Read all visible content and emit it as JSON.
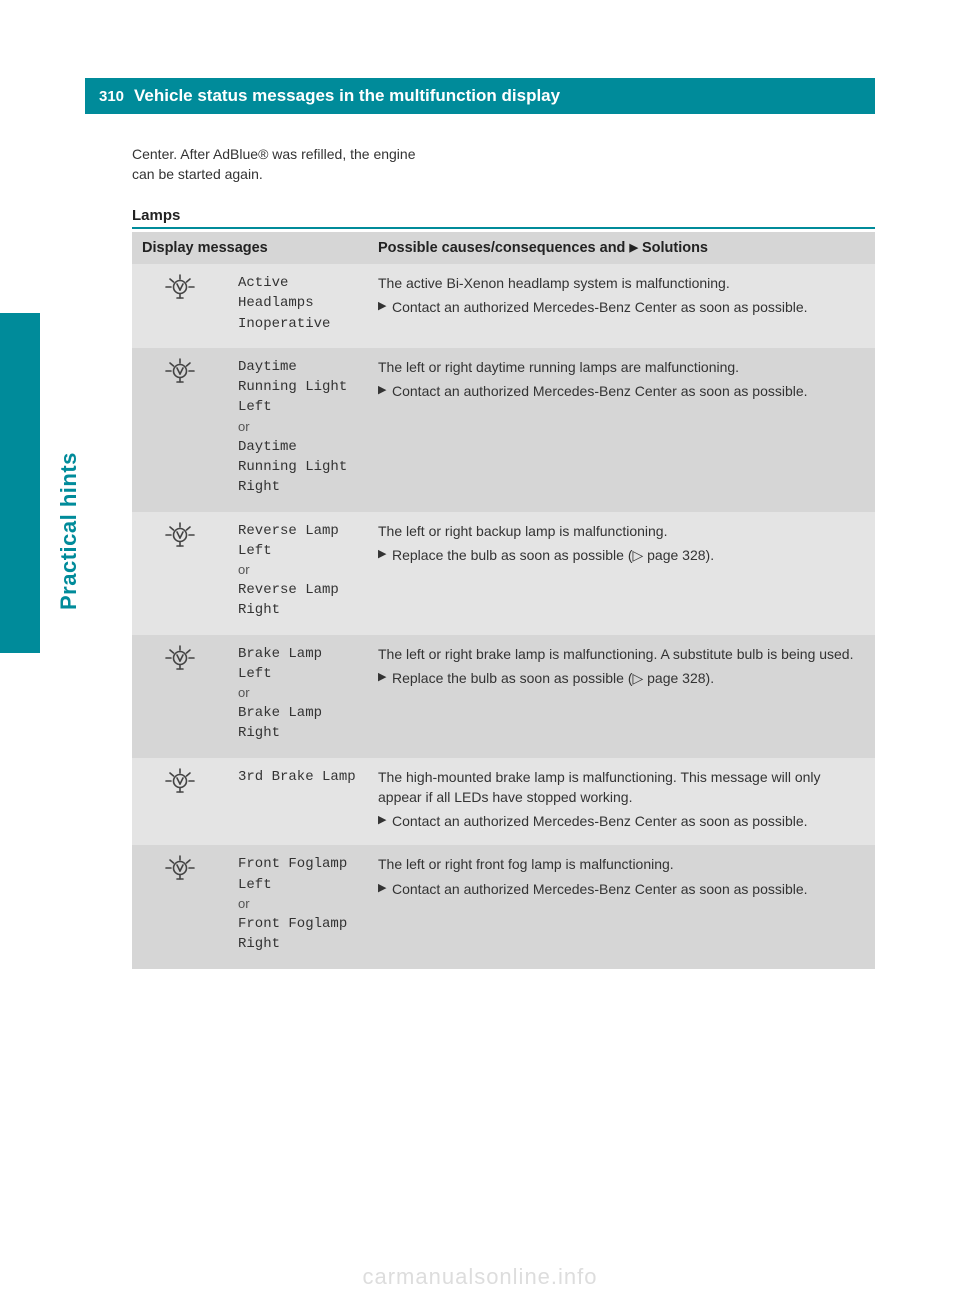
{
  "page_number": "310",
  "header_title": "Vehicle status messages in the multifunction display",
  "sidebar_label": "Practical hints",
  "intro_text": "Center. After AdBlue® was refilled, the engine can be started again.",
  "section_title": "Lamps",
  "th_messages": "Display messages",
  "th_solutions_prefix": "Possible causes/consequences and ",
  "th_solutions_suffix": " Solutions",
  "page_ref": "page 328",
  "watermark": "carmanualsonline.info",
  "rows": [
    {
      "msg1": "Active Headlamps Inoperative",
      "or": "",
      "msg2": "",
      "lead": "The active Bi-Xenon headlamp system is malfunctioning.",
      "action": "Contact an authorized Mercedes-Benz Center as soon as possible.",
      "has_ref": false
    },
    {
      "msg1": "Daytime Running Light Left",
      "or": "or",
      "msg2": "Daytime Running Light Right",
      "lead": "The left or right daytime running lamps are malfunctioning.",
      "action": "Contact an authorized Mercedes-Benz Center as soon as possible.",
      "has_ref": false
    },
    {
      "msg1": "Reverse Lamp Left",
      "or": "or",
      "msg2": "Reverse Lamp Right",
      "lead": "The left or right backup lamp is malfunctioning.",
      "action": "Replace the bulb as soon as possible (▷ page 328).",
      "has_ref": true
    },
    {
      "msg1": "Brake Lamp Left",
      "or": "or",
      "msg2": "Brake Lamp Right",
      "lead": "The left or right brake lamp is malfunctioning. A substitute bulb is being used.",
      "action": "Replace the bulb as soon as possible (▷ page 328).",
      "has_ref": true
    },
    {
      "msg1": "3rd Brake Lamp",
      "or": "",
      "msg2": "",
      "lead": "The high-mounted brake lamp is malfunctioning. This message will only appear if all LEDs have stopped working.",
      "action": "Contact an authorized Mercedes-Benz Center as soon as possible.",
      "has_ref": false
    },
    {
      "msg1": "Front Foglamp Left",
      "or": "or",
      "msg2": "Front Foglamp Right",
      "lead": "The left or right front fog lamp is malfunctioning.",
      "action": "Contact an authorized Mercedes-Benz Center as soon as possible.",
      "has_ref": false
    }
  ],
  "colors": {
    "teal": "#008b9a",
    "row_odd": "#e4e4e4",
    "row_even": "#d6d6d6",
    "text": "#333333",
    "watermark": "#dddddd"
  }
}
